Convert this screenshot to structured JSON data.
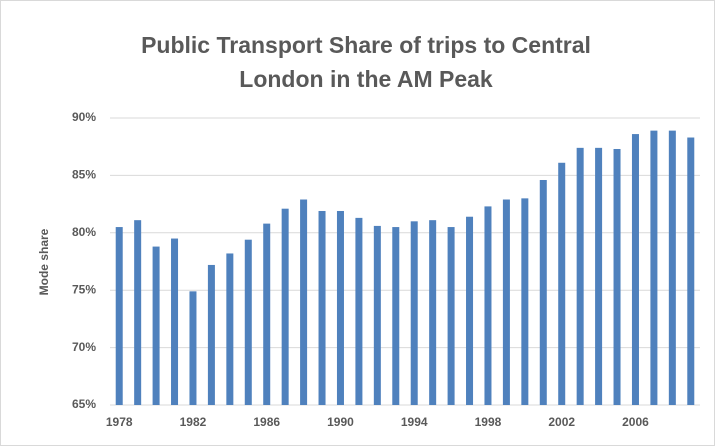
{
  "chart_data": {
    "type": "bar",
    "title": "Public Transport Share of trips to Central London in the AM Peak",
    "y_label": "Mode share",
    "categories": [
      "1978",
      null,
      null,
      null,
      "1982",
      null,
      null,
      null,
      "1986",
      null,
      null,
      null,
      "1990",
      null,
      null,
      null,
      "1994",
      null,
      null,
      null,
      "1998",
      null,
      null,
      null,
      "2002",
      null,
      null,
      null,
      "2006",
      null,
      null,
      null
    ],
    "values": [
      80.5,
      81.1,
      78.8,
      79.5,
      74.9,
      77.2,
      78.2,
      79.4,
      80.8,
      82.1,
      82.9,
      81.9,
      81.9,
      81.3,
      80.6,
      80.5,
      81.0,
      81.1,
      80.5,
      81.4,
      82.3,
      82.9,
      83.0,
      84.6,
      86.1,
      87.4,
      87.4,
      87.3,
      88.6,
      88.9,
      88.9,
      88.3
    ],
    "color": "#4f81bd",
    "ylim": [
      65,
      90
    ],
    "yticks": [
      {
        "value": 65,
        "label": "65%"
      },
      {
        "value": 70,
        "label": "70%"
      },
      {
        "value": 75,
        "label": "75%"
      },
      {
        "value": 80,
        "label": "80%"
      },
      {
        "value": 85,
        "label": "85%"
      },
      {
        "value": 90,
        "label": "90%"
      }
    ],
    "grid": true
  }
}
